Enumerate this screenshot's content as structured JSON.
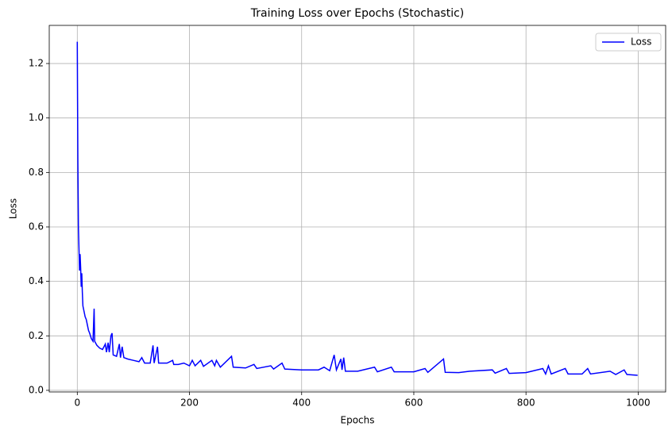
{
  "chart_data": {
    "type": "line",
    "title": "Training Loss over Epochs (Stochastic)",
    "x_label": "Epochs",
    "y_label": "Loss",
    "x": [
      0,
      1,
      2,
      3,
      4,
      5,
      6,
      7,
      8,
      9,
      10,
      12,
      14,
      16,
      18,
      20,
      22,
      25,
      28,
      30,
      31,
      35,
      40,
      45,
      50,
      52,
      55,
      57,
      60,
      62,
      64,
      70,
      75,
      77,
      80,
      83,
      90,
      100,
      110,
      115,
      120,
      130,
      135,
      137,
      143,
      145,
      155,
      160,
      170,
      172,
      180,
      190,
      200,
      205,
      210,
      220,
      225,
      240,
      245,
      248,
      255,
      275,
      278,
      300,
      315,
      320,
      345,
      350,
      365,
      370,
      400,
      430,
      440,
      450,
      458,
      462,
      470,
      472,
      475,
      478,
      500,
      530,
      535,
      560,
      565,
      600,
      620,
      625,
      653,
      656,
      680,
      700,
      740,
      745,
      765,
      770,
      800,
      830,
      835,
      840,
      845,
      870,
      875,
      900,
      910,
      915,
      950,
      960,
      975,
      980,
      999
    ],
    "series": [
      {
        "name": "Loss",
        "color": "#0000ff",
        "values": [
          1.28,
          0.85,
          0.6,
          0.52,
          0.44,
          0.5,
          0.45,
          0.38,
          0.43,
          0.36,
          0.31,
          0.29,
          0.27,
          0.26,
          0.24,
          0.22,
          0.21,
          0.19,
          0.18,
          0.3,
          0.18,
          0.165,
          0.155,
          0.15,
          0.17,
          0.14,
          0.175,
          0.14,
          0.2,
          0.21,
          0.13,
          0.125,
          0.17,
          0.12,
          0.16,
          0.12,
          0.115,
          0.11,
          0.105,
          0.12,
          0.1,
          0.1,
          0.165,
          0.1,
          0.16,
          0.1,
          0.1,
          0.1,
          0.11,
          0.095,
          0.095,
          0.1,
          0.09,
          0.11,
          0.09,
          0.11,
          0.088,
          0.11,
          0.09,
          0.11,
          0.085,
          0.125,
          0.085,
          0.082,
          0.095,
          0.08,
          0.09,
          0.078,
          0.1,
          0.078,
          0.075,
          0.075,
          0.085,
          0.072,
          0.13,
          0.075,
          0.115,
          0.075,
          0.12,
          0.07,
          0.07,
          0.085,
          0.068,
          0.085,
          0.068,
          0.068,
          0.08,
          0.066,
          0.115,
          0.066,
          0.065,
          0.07,
          0.075,
          0.063,
          0.08,
          0.062,
          0.065,
          0.08,
          0.06,
          0.09,
          0.06,
          0.08,
          0.06,
          0.06,
          0.08,
          0.06,
          0.07,
          0.058,
          0.075,
          0.058,
          0.055
        ]
      }
    ],
    "xlim": [
      -50,
      1049
    ],
    "ylim": [
      -0.006,
      1.34
    ],
    "xticks": [
      0,
      200,
      400,
      600,
      800,
      1000
    ],
    "yticks": [
      {
        "value": 0,
        "label": "0.0"
      },
      0.2,
      0.4,
      0.6,
      0.8,
      {
        "value": 1,
        "label": "1.0"
      },
      1.2
    ],
    "grid": true,
    "legend": "upper right"
  }
}
